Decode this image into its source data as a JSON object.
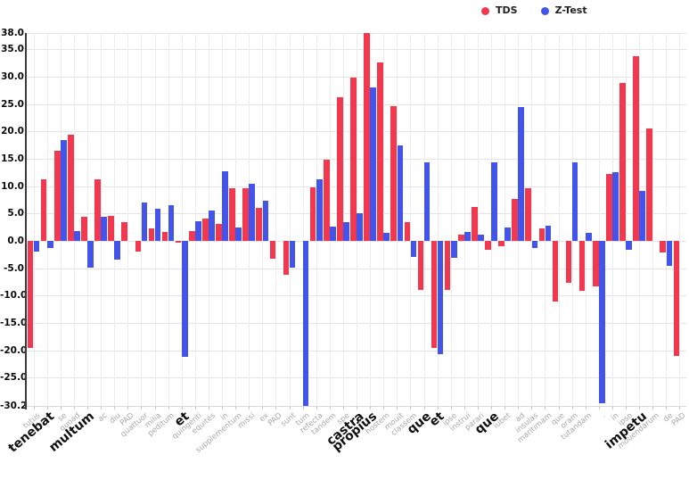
{
  "legend": {
    "items": [
      {
        "label": "TDS",
        "color": "#f2384e"
      },
      {
        "label": "Z-Test",
        "color": "#4254e9"
      }
    ]
  },
  "chart_data": {
    "type": "bar",
    "title": "",
    "xlabel": "",
    "ylabel": "",
    "ylim": [
      -30.2,
      38.0
    ],
    "grid": true,
    "legend_position": "top-right",
    "yticks": [
      38.0,
      35.0,
      30.0,
      25.0,
      20.0,
      15.0,
      10.0,
      5.0,
      0.0,
      -5.0,
      -10.0,
      -15.0,
      -20.0,
      -25.0,
      -30.2
    ],
    "ytick_labels": [
      "38.0",
      "35.0",
      "30.0",
      "25.0",
      "20.0",
      "15.0",
      "10.0",
      "5.0",
      "0.0",
      "-5.0",
      "-10.0",
      "-15.0",
      "-20.0",
      "-25.0",
      "-30.2"
    ],
    "categories": [
      "tutus",
      "tenebat",
      "se",
      "quoad",
      "multum",
      "ac",
      "diu",
      "PAD",
      "quattuor",
      "milia",
      "peditum",
      "et",
      "quingenti",
      "equites",
      "in",
      "supplementum",
      "missi",
      "ex",
      "PAD",
      "sunt",
      "tum",
      "refecta",
      "tandem",
      "spe",
      "castra",
      "propius",
      "hostem",
      "mouit",
      "classem",
      "que",
      "et",
      "ipse",
      "instrui",
      "parari",
      "que",
      "iubet",
      "ad",
      "insulas",
      "maritimam",
      "que",
      "oram",
      "tutandam",
      ".",
      "in",
      "ipso",
      "impetu",
      "mouendarum",
      "de",
      "PAD"
    ],
    "bold_category_indices": [
      1,
      4,
      11,
      24,
      25,
      29,
      30,
      34,
      45
    ],
    "series": [
      {
        "name": "TDS",
        "color": "#f2384e",
        "values": [
          -19.6,
          11.3,
          16.4,
          19.4,
          4.4,
          11.2,
          4.5,
          3.5,
          -2.0,
          2.3,
          1.7,
          -0.4,
          1.8,
          4.0,
          3.1,
          9.6,
          9.7,
          6.0,
          -3.3,
          -6.3,
          0.0,
          9.8,
          14.8,
          26.3,
          29.8,
          38.0,
          32.6,
          24.7,
          3.4,
          -9.0,
          -19.6,
          -9.0,
          1.2,
          6.2,
          -1.6,
          -1.0,
          7.7,
          9.6,
          2.3,
          -11.2,
          -7.7,
          -9.1,
          -8.4,
          12.2,
          28.9,
          33.8,
          20.6,
          -2.2,
          -21.1
        ]
      },
      {
        "name": "Z-Test",
        "color": "#4254e9",
        "values": [
          -2.0,
          -1.3,
          18.5,
          1.8,
          -5.0,
          4.4,
          -3.4,
          0.0,
          7.0,
          5.9,
          6.6,
          -21.3,
          3.6,
          5.5,
          12.7,
          2.5,
          10.4,
          7.3,
          0.0,
          -4.9,
          -30.2,
          11.3,
          2.6,
          3.4,
          5.0,
          28.0,
          1.5,
          17.5,
          -2.9,
          14.4,
          -20.7,
          -3.2,
          1.7,
          1.2,
          14.4,
          2.4,
          24.5,
          -1.3,
          2.7,
          0.0,
          14.4,
          1.5,
          -29.8,
          12.6,
          -1.6,
          9.2,
          0.0,
          -4.6,
          0.0
        ]
      }
    ]
  }
}
